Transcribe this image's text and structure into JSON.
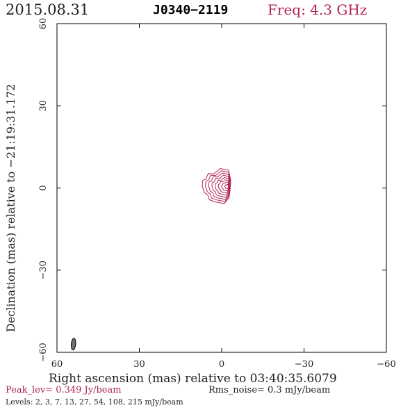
{
  "header": {
    "date": "2015.08.31",
    "source": "J0340−2119",
    "freq": "Freq: 4.3 GHz"
  },
  "footer": {
    "peak": "Peak_lev=  0.349 Jy/beam",
    "rms": "Rms_noise=  0.3 mJy/beam",
    "levels": "Levels:   2,   3,   7,   13,   27,   54,  108,  215  mJy/beam"
  },
  "colors": {
    "contour": "#b0244e",
    "beam": "#707070",
    "axis": "#000000"
  },
  "chart_data": {
    "type": "contour",
    "xlabel": "Right ascension (mas) relative to 03:40:35.6079",
    "ylabel": "Declination (mas) relative to −21:19:31.172",
    "xlim": [
      60,
      -60
    ],
    "ylim": [
      -60,
      60
    ],
    "x_ticks": [
      60,
      30,
      0,
      -30,
      -60
    ],
    "y_ticks": [
      60,
      30,
      0,
      -30,
      -60
    ],
    "x_tick_labels": [
      "60",
      "30",
      "0",
      "−30",
      "−60"
    ],
    "y_tick_labels": [
      "60",
      "30",
      "0",
      "−30",
      "−60"
    ],
    "contour_levels_mJy": [
      2,
      3,
      7,
      13,
      27,
      54,
      108,
      215
    ],
    "peak_Jy_per_beam": 0.349,
    "rms_mJy_per_beam": 0.3,
    "component": {
      "x_mas": 0.5,
      "y_mas": 0.5
    },
    "beam": {
      "x_mas": 54,
      "y_mas": -57,
      "major_mas": 4.3,
      "minor_mas": 1.6,
      "pa_deg": 5
    }
  }
}
